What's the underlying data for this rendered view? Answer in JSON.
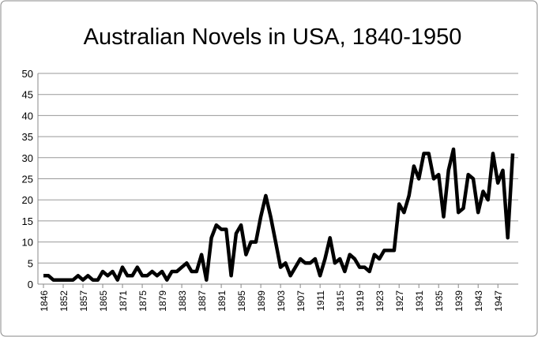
{
  "chart_data": {
    "type": "line",
    "title": "Australian Novels in USA, 1840-1950",
    "categories": [
      "1846",
      null,
      null,
      null,
      "1852",
      null,
      null,
      null,
      "1857",
      null,
      null,
      null,
      "1865",
      null,
      null,
      null,
      "1871",
      null,
      null,
      null,
      "1875",
      null,
      null,
      null,
      "1879",
      null,
      null,
      null,
      "1883",
      null,
      null,
      null,
      "1887",
      null,
      null,
      null,
      "1891",
      null,
      null,
      null,
      "1895",
      null,
      null,
      null,
      "1899",
      null,
      null,
      null,
      "1903",
      null,
      null,
      null,
      "1907",
      null,
      null,
      null,
      "1911",
      null,
      null,
      null,
      "1915",
      null,
      null,
      null,
      "1919",
      null,
      null,
      null,
      "1923",
      null,
      null,
      null,
      "1927",
      null,
      null,
      null,
      "1931",
      null,
      null,
      null,
      "1935",
      null,
      null,
      null,
      "1939",
      null,
      null,
      null,
      "1943",
      null,
      null,
      null,
      "1947",
      null,
      null,
      null
    ],
    "values": [
      2,
      2,
      1,
      1,
      1,
      1,
      1,
      2,
      1,
      2,
      1,
      1,
      3,
      2,
      3,
      1,
      4,
      2,
      2,
      4,
      2,
      2,
      3,
      2,
      3,
      1,
      3,
      3,
      4,
      5,
      3,
      3,
      7,
      1,
      11,
      14,
      13,
      13,
      2,
      12,
      14,
      7,
      10,
      10,
      16,
      21,
      16,
      10,
      4,
      5,
      2,
      4,
      6,
      5,
      5,
      6,
      2,
      6,
      11,
      5,
      6,
      3,
      7,
      6,
      4,
      4,
      3,
      7,
      6,
      8,
      8,
      8,
      19,
      17,
      21,
      28,
      25,
      31,
      31,
      25,
      26,
      16,
      27,
      32,
      17,
      18,
      26,
      25,
      17,
      22,
      20,
      31,
      24,
      27,
      11,
      31
    ],
    "color": "#000000",
    "ylim": [
      0,
      50
    ],
    "yticks": [
      0,
      5,
      10,
      15,
      20,
      25,
      30,
      35,
      40,
      45,
      50
    ],
    "grid": true
  }
}
